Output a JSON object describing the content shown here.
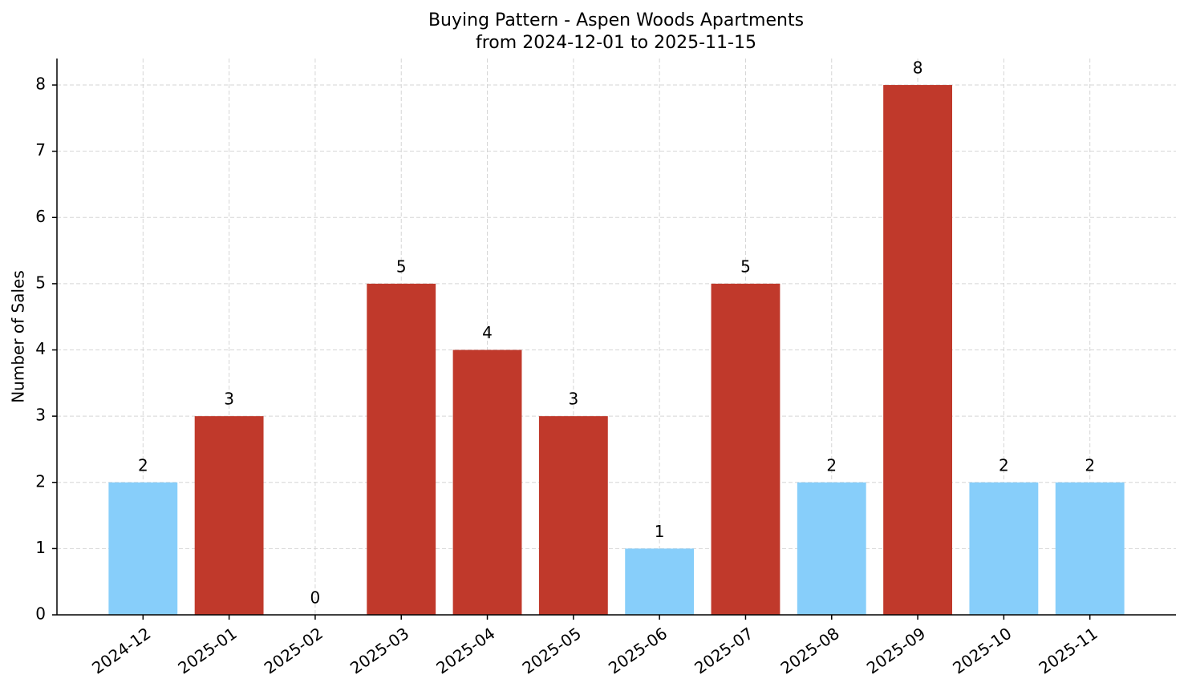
{
  "chart_data": {
    "type": "bar",
    "title": "Buying Pattern - Aspen Woods Apartments",
    "subtitle": "from 2024-12-01 to 2025-11-15",
    "y_label": "Number of Sales",
    "categories": [
      "2024-12",
      "2025-01",
      "2025-02",
      "2025-03",
      "2025-04",
      "2025-05",
      "2025-06",
      "2025-07",
      "2025-08",
      "2025-09",
      "2025-10",
      "2025-11"
    ],
    "values": [
      2,
      3,
      0,
      5,
      4,
      3,
      1,
      5,
      2,
      8,
      2,
      2
    ],
    "colors": [
      "#87cefa",
      "#c0392b",
      "#c0392b",
      "#c0392b",
      "#c0392b",
      "#c0392b",
      "#87cefa",
      "#c0392b",
      "#87cefa",
      "#c0392b",
      "#87cefa",
      "#87cefa"
    ],
    "ylim": [
      0,
      8.4
    ],
    "yticks": [
      0,
      1,
      2,
      3,
      4,
      5,
      6,
      7,
      8
    ],
    "grid": true
  }
}
